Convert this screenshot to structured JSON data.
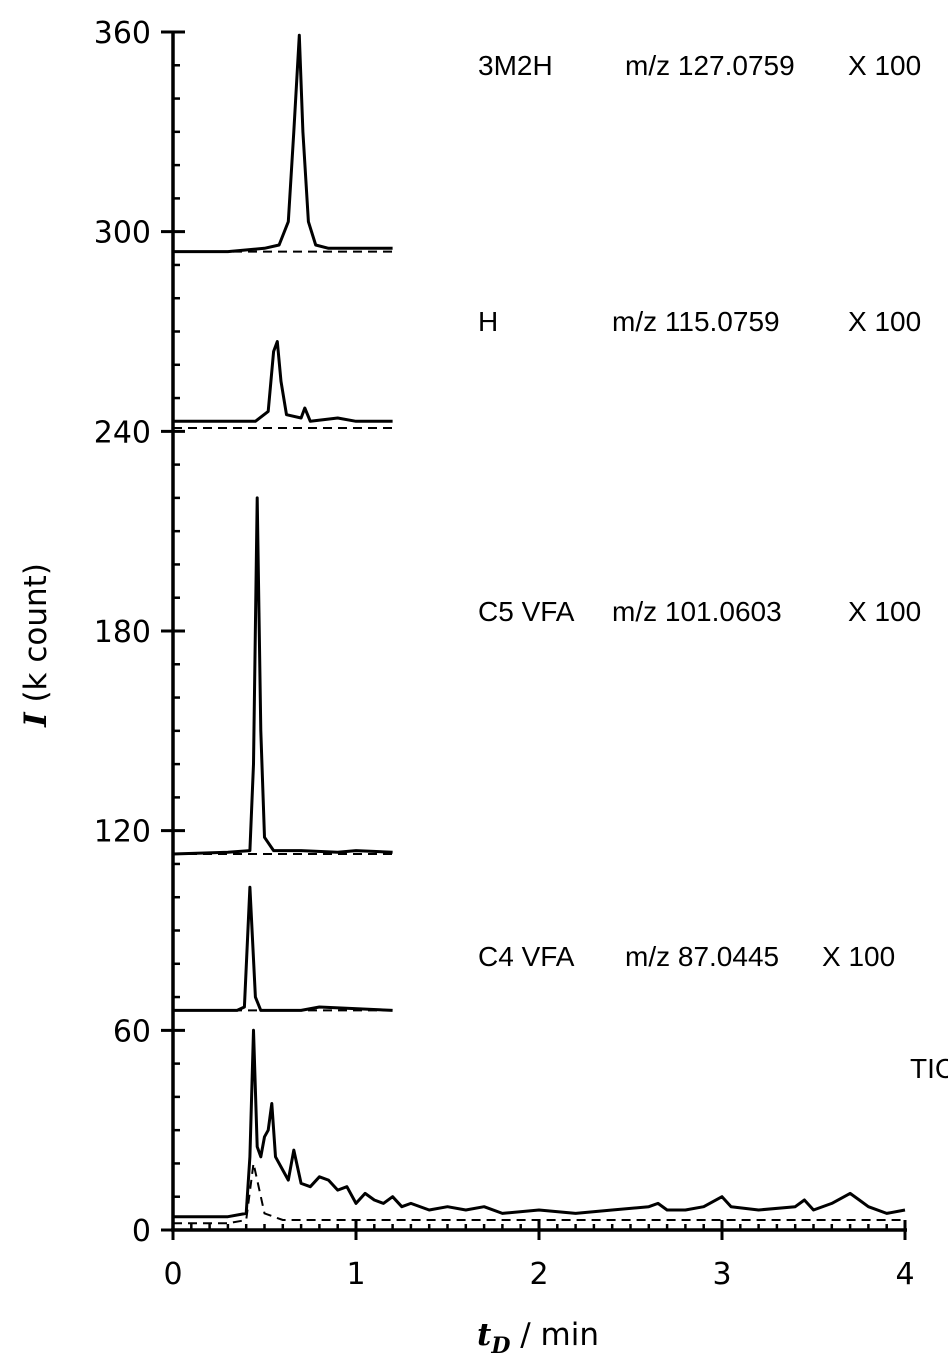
{
  "chart_data": {
    "type": "line",
    "title": "",
    "xlabel": {
      "var": "t",
      "sub": "D",
      "unit": " / min"
    },
    "ylabel": {
      "var": "I",
      "unit": " (k count)"
    },
    "xlim": [
      0,
      4
    ],
    "ylim": [
      0,
      360
    ],
    "xticks": [
      0,
      1,
      2,
      3,
      4
    ],
    "yticks": [
      0,
      60,
      120,
      180,
      240,
      300,
      360
    ],
    "grid": false,
    "series": [
      {
        "label": {
          "compound": "TIC",
          "mz": "",
          "scale": ""
        },
        "baseline": 3,
        "solid": [
          [
            0,
            4
          ],
          [
            0.3,
            4
          ],
          [
            0.4,
            5
          ],
          [
            0.42,
            22
          ],
          [
            0.44,
            60
          ],
          [
            0.46,
            25
          ],
          [
            0.48,
            22
          ],
          [
            0.5,
            28
          ],
          [
            0.52,
            30
          ],
          [
            0.54,
            38
          ],
          [
            0.56,
            22
          ],
          [
            0.6,
            18
          ],
          [
            0.63,
            15
          ],
          [
            0.66,
            24
          ],
          [
            0.7,
            14
          ],
          [
            0.75,
            13
          ],
          [
            0.8,
            16
          ],
          [
            0.85,
            15
          ],
          [
            0.9,
            12
          ],
          [
            0.95,
            13
          ],
          [
            1.0,
            8
          ],
          [
            1.05,
            11
          ],
          [
            1.1,
            9
          ],
          [
            1.15,
            8
          ],
          [
            1.2,
            10
          ],
          [
            1.25,
            7
          ],
          [
            1.3,
            8
          ],
          [
            1.4,
            6
          ],
          [
            1.5,
            7
          ],
          [
            1.6,
            6
          ],
          [
            1.7,
            7
          ],
          [
            1.8,
            5
          ],
          [
            2.0,
            6
          ],
          [
            2.2,
            5
          ],
          [
            2.4,
            6
          ],
          [
            2.6,
            7
          ],
          [
            2.65,
            8
          ],
          [
            2.7,
            6
          ],
          [
            2.8,
            6
          ],
          [
            2.9,
            7
          ],
          [
            3.0,
            10
          ],
          [
            3.05,
            7
          ],
          [
            3.2,
            6
          ],
          [
            3.4,
            7
          ],
          [
            3.45,
            9
          ],
          [
            3.5,
            6
          ],
          [
            3.6,
            8
          ],
          [
            3.7,
            11
          ],
          [
            3.75,
            9
          ],
          [
            3.8,
            7
          ],
          [
            3.9,
            5
          ],
          [
            4.0,
            6
          ]
        ],
        "dashed": [
          [
            0,
            2
          ],
          [
            0.3,
            2
          ],
          [
            0.4,
            3
          ],
          [
            0.44,
            20
          ],
          [
            0.46,
            15
          ],
          [
            0.5,
            5
          ],
          [
            0.55,
            4
          ],
          [
            0.6,
            3
          ],
          [
            4.0,
            3
          ]
        ]
      },
      {
        "label": {
          "compound": "C4 VFA",
          "mz": "m/z 87.0445",
          "scale": "X 100"
        },
        "baseline": 66,
        "solid": [
          [
            0,
            66
          ],
          [
            0.35,
            66
          ],
          [
            0.39,
            67
          ],
          [
            0.42,
            103
          ],
          [
            0.45,
            70
          ],
          [
            0.48,
            66
          ],
          [
            0.7,
            66
          ],
          [
            0.8,
            67
          ],
          [
            1.2,
            66
          ]
        ],
        "dashed": [
          [
            0,
            66
          ],
          [
            1.2,
            66
          ]
        ]
      },
      {
        "label": {
          "compound": "C5 VFA",
          "mz": "m/z 101.0603",
          "scale": "X 100"
        },
        "baseline": 113,
        "solid": [
          [
            0,
            113
          ],
          [
            0.3,
            113.5
          ],
          [
            0.42,
            114
          ],
          [
            0.44,
            140
          ],
          [
            0.46,
            220
          ],
          [
            0.48,
            150
          ],
          [
            0.5,
            118
          ],
          [
            0.55,
            114
          ],
          [
            0.7,
            114
          ],
          [
            0.9,
            113.5
          ],
          [
            1.0,
            114
          ],
          [
            1.2,
            113.5
          ]
        ],
        "dashed": [
          [
            0,
            113
          ],
          [
            1.2,
            113
          ]
        ]
      },
      {
        "label": {
          "compound": "H",
          "mz": "m/z 115.0759",
          "scale": "X 100"
        },
        "baseline": 240,
        "solid": [
          [
            0,
            243
          ],
          [
            0.3,
            243
          ],
          [
            0.45,
            243
          ],
          [
            0.52,
            246
          ],
          [
            0.55,
            264
          ],
          [
            0.57,
            267
          ],
          [
            0.59,
            255
          ],
          [
            0.62,
            245
          ],
          [
            0.7,
            244
          ],
          [
            0.72,
            247
          ],
          [
            0.75,
            243
          ],
          [
            0.9,
            244
          ],
          [
            1.0,
            243
          ],
          [
            1.2,
            243
          ]
        ],
        "dashed": [
          [
            0,
            241
          ],
          [
            1.2,
            241
          ]
        ]
      },
      {
        "label": {
          "compound": "3M2H",
          "mz": "m/z 127.0759",
          "scale": "X 100"
        },
        "baseline": 294,
        "solid": [
          [
            0,
            294
          ],
          [
            0.3,
            294
          ],
          [
            0.5,
            295
          ],
          [
            0.58,
            296
          ],
          [
            0.63,
            303
          ],
          [
            0.66,
            330
          ],
          [
            0.69,
            359
          ],
          [
            0.71,
            330
          ],
          [
            0.74,
            303
          ],
          [
            0.78,
            296
          ],
          [
            0.85,
            295
          ],
          [
            1.0,
            295
          ],
          [
            1.2,
            295
          ]
        ],
        "dashed": [
          [
            0,
            294
          ],
          [
            1.2,
            294
          ]
        ]
      }
    ]
  }
}
